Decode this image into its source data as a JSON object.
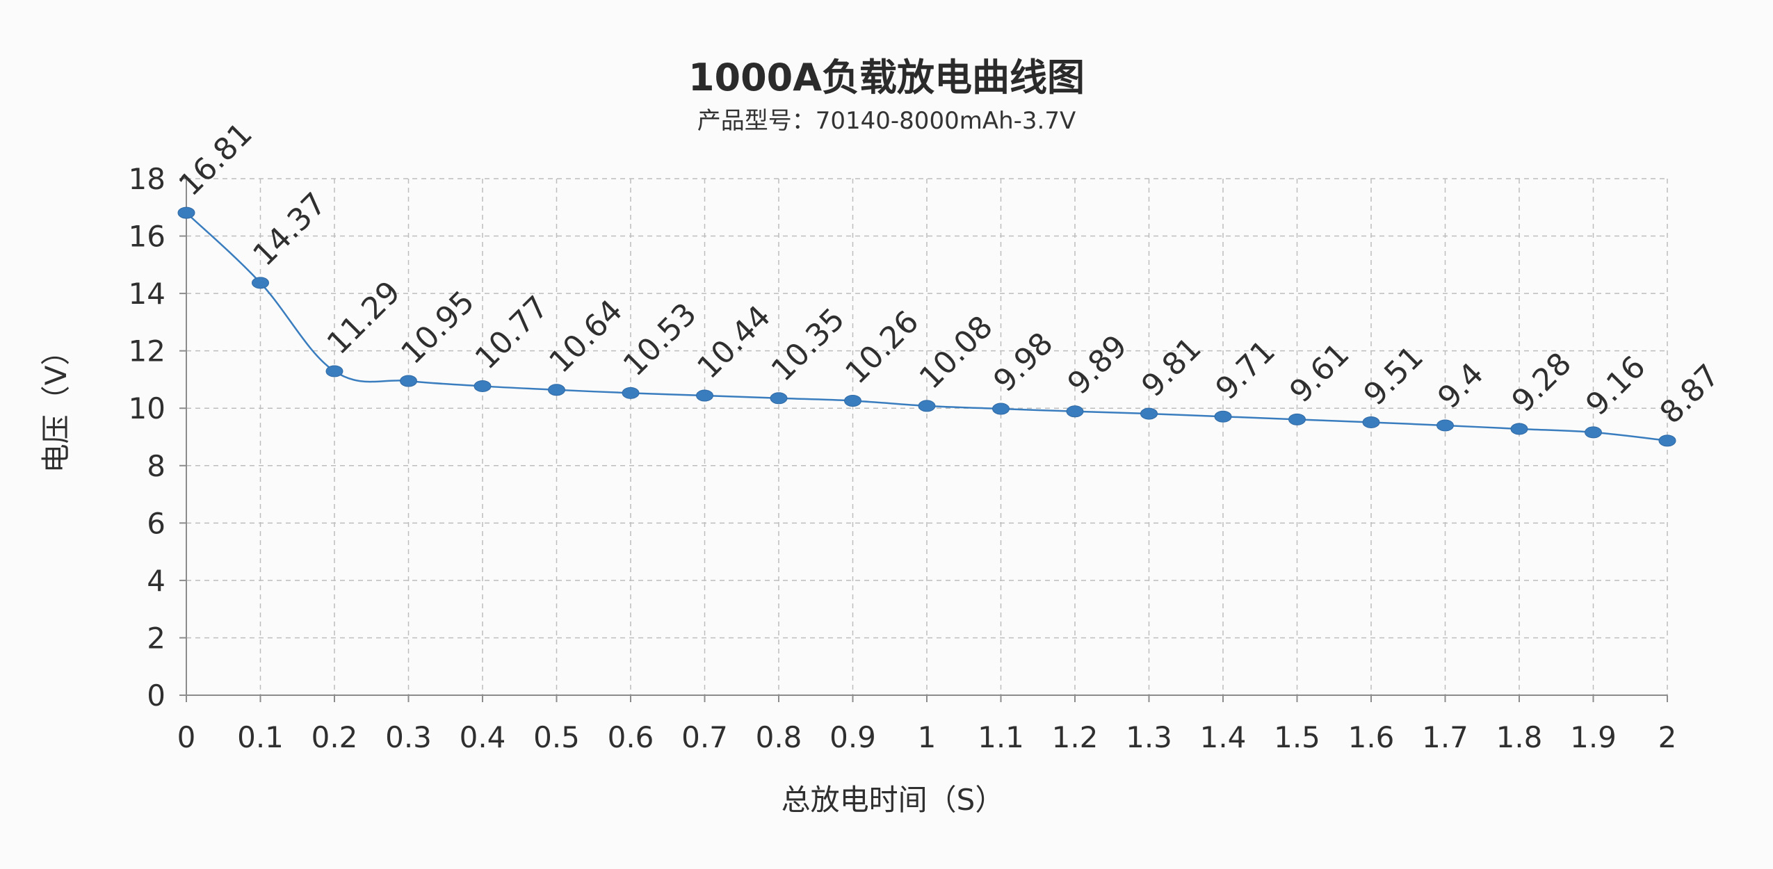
{
  "chart_data": {
    "type": "line",
    "title": "1000A负载放电曲线图",
    "subtitle": "产品型号：70140-8000mAh-3.7V",
    "xlabel": "总放电时间（S）",
    "ylabel": "电压（V）",
    "x": [
      0,
      0.1,
      0.2,
      0.3,
      0.4,
      0.5,
      0.6,
      0.7,
      0.8,
      0.9,
      1,
      1.1,
      1.2,
      1.3,
      1.4,
      1.5,
      1.6,
      1.7,
      1.8,
      1.9,
      2
    ],
    "x_tick_labels": [
      "0",
      "0.1",
      "0.2",
      "0.3",
      "0.4",
      "0.5",
      "0.6",
      "0.7",
      "0.8",
      "0.9",
      "1",
      "1.1",
      "1.2",
      "1.3",
      "1.4",
      "1.5",
      "1.6",
      "1.7",
      "1.8",
      "1.9",
      "2"
    ],
    "y_ticks": [
      0,
      2,
      4,
      6,
      8,
      10,
      12,
      14,
      16,
      18
    ],
    "xlim": [
      0,
      2
    ],
    "ylim": [
      0,
      18
    ],
    "grid": true,
    "series": [
      {
        "values": [
          16.81,
          14.37,
          11.29,
          10.95,
          10.77,
          10.64,
          10.53,
          10.44,
          10.35,
          10.26,
          10.08,
          9.98,
          9.89,
          9.81,
          9.71,
          9.61,
          9.51,
          9.4,
          9.28,
          9.16,
          8.87
        ],
        "labels": [
          "16.81",
          "14.37",
          "11.29",
          "10.95",
          "10.77",
          "10.64",
          "10.53",
          "10.44",
          "10.35",
          "10.26",
          "10.08",
          "9.98",
          "9.89",
          "9.81",
          "9.71",
          "9.61",
          "9.51",
          "9.4",
          "9.28",
          "9.16",
          "8.87"
        ],
        "color": "#3a7dbf"
      }
    ]
  }
}
